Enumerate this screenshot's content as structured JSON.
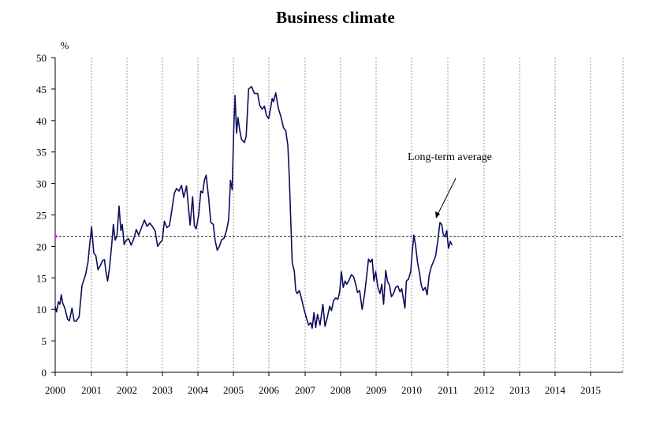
{
  "title": "Business climate",
  "chart_data": {
    "type": "line",
    "title": "Business climate",
    "ylabel": "%",
    "xlabel": "",
    "ylim": [
      0,
      50
    ],
    "xlim": [
      2000,
      2015.9
    ],
    "yticks": [
      0,
      5,
      10,
      15,
      20,
      25,
      30,
      35,
      40,
      45,
      50
    ],
    "xticks": [
      "2000",
      "2001",
      "2002",
      "2003",
      "2004",
      "2005",
      "2006",
      "2007",
      "2008",
      "2009",
      "2010",
      "2011",
      "2012",
      "2013",
      "2014",
      "2015"
    ],
    "grid": "vertical dashed at year boundaries",
    "reference_line": {
      "label": "Long-term average",
      "value": 21.6,
      "style": "dashed"
    },
    "annotation": {
      "text": "Long-term average"
    },
    "colors": {
      "series": "#0d0d5e",
      "average_marker": "#cc33cc"
    },
    "series": [
      {
        "values": [
          [
            2000.0,
            10.5
          ],
          [
            2000.04,
            9.6
          ],
          [
            2000.09,
            11.2
          ],
          [
            2000.13,
            10.8
          ],
          [
            2000.17,
            12.3
          ],
          [
            2000.21,
            11.0
          ],
          [
            2000.27,
            10.2
          ],
          [
            2000.35,
            8.4
          ],
          [
            2000.4,
            8.2
          ],
          [
            2000.47,
            10.2
          ],
          [
            2000.53,
            8.2
          ],
          [
            2000.58,
            8.1
          ],
          [
            2000.67,
            8.8
          ],
          [
            2000.75,
            13.8
          ],
          [
            2000.85,
            15.5
          ],
          [
            2000.92,
            17.5
          ],
          [
            2000.97,
            20.5
          ],
          [
            2001.02,
            23.1
          ],
          [
            2001.08,
            19.0
          ],
          [
            2001.14,
            18.5
          ],
          [
            2001.2,
            16.3
          ],
          [
            2001.27,
            17.0
          ],
          [
            2001.33,
            17.8
          ],
          [
            2001.38,
            17.9
          ],
          [
            2001.42,
            16.0
          ],
          [
            2001.47,
            14.5
          ],
          [
            2001.52,
            16.5
          ],
          [
            2001.58,
            20.0
          ],
          [
            2001.63,
            23.5
          ],
          [
            2001.68,
            21.0
          ],
          [
            2001.73,
            21.6
          ],
          [
            2001.79,
            26.4
          ],
          [
            2001.84,
            22.5
          ],
          [
            2001.88,
            23.5
          ],
          [
            2001.93,
            20.3
          ],
          [
            2001.99,
            21.0
          ],
          [
            2002.06,
            21.2
          ],
          [
            2002.13,
            20.2
          ],
          [
            2002.2,
            21.2
          ],
          [
            2002.27,
            22.7
          ],
          [
            2002.34,
            21.8
          ],
          [
            2002.42,
            23.0
          ],
          [
            2002.5,
            24.2
          ],
          [
            2002.57,
            23.2
          ],
          [
            2002.65,
            23.7
          ],
          [
            2002.72,
            23.2
          ],
          [
            2002.8,
            22.5
          ],
          [
            2002.87,
            20.0
          ],
          [
            2002.94,
            20.6
          ],
          [
            2003.0,
            21.0
          ],
          [
            2003.06,
            24.0
          ],
          [
            2003.13,
            23.0
          ],
          [
            2003.2,
            23.3
          ],
          [
            2003.27,
            25.8
          ],
          [
            2003.34,
            28.5
          ],
          [
            2003.4,
            29.2
          ],
          [
            2003.47,
            28.8
          ],
          [
            2003.54,
            29.7
          ],
          [
            2003.6,
            27.8
          ],
          [
            2003.68,
            29.6
          ],
          [
            2003.73,
            26.5
          ],
          [
            2003.78,
            23.4
          ],
          [
            2003.85,
            27.9
          ],
          [
            2003.9,
            23.3
          ],
          [
            2003.95,
            22.8
          ],
          [
            2004.02,
            25.0
          ],
          [
            2004.08,
            28.8
          ],
          [
            2004.13,
            28.5
          ],
          [
            2004.18,
            30.5
          ],
          [
            2004.23,
            31.3
          ],
          [
            2004.3,
            27.7
          ],
          [
            2004.36,
            23.8
          ],
          [
            2004.43,
            23.5
          ],
          [
            2004.48,
            21.0
          ],
          [
            2004.54,
            19.4
          ],
          [
            2004.6,
            20.0
          ],
          [
            2004.66,
            21.0
          ],
          [
            2004.73,
            21.3
          ],
          [
            2004.8,
            22.5
          ],
          [
            2004.86,
            24.3
          ],
          [
            2004.91,
            30.5
          ],
          [
            2004.96,
            29.0
          ],
          [
            2005.0,
            38.0
          ],
          [
            2005.04,
            44.0
          ],
          [
            2005.08,
            38.0
          ],
          [
            2005.12,
            40.5
          ],
          [
            2005.17,
            38.5
          ],
          [
            2005.22,
            37.0
          ],
          [
            2005.3,
            36.5
          ],
          [
            2005.35,
            37.5
          ],
          [
            2005.42,
            45.0
          ],
          [
            2005.5,
            45.4
          ],
          [
            2005.58,
            44.3
          ],
          [
            2005.67,
            44.3
          ],
          [
            2005.73,
            42.4
          ],
          [
            2005.8,
            41.8
          ],
          [
            2005.86,
            42.3
          ],
          [
            2005.92,
            40.8
          ],
          [
            2005.98,
            40.3
          ],
          [
            2006.03,
            41.8
          ],
          [
            2006.08,
            43.5
          ],
          [
            2006.12,
            43.0
          ],
          [
            2006.18,
            44.4
          ],
          [
            2006.25,
            42.0
          ],
          [
            2006.33,
            40.5
          ],
          [
            2006.4,
            38.8
          ],
          [
            2006.46,
            38.4
          ],
          [
            2006.52,
            36.0
          ],
          [
            2006.56,
            31.0
          ],
          [
            2006.6,
            24.0
          ],
          [
            2006.64,
            17.5
          ],
          [
            2006.7,
            16.0
          ],
          [
            2006.74,
            13.0
          ],
          [
            2006.78,
            12.5
          ],
          [
            2006.84,
            13.0
          ],
          [
            2006.88,
            12.2
          ],
          [
            2006.93,
            11.0
          ],
          [
            2006.98,
            9.8
          ],
          [
            2007.04,
            8.6
          ],
          [
            2007.1,
            7.5
          ],
          [
            2007.16,
            7.9
          ],
          [
            2007.2,
            7.0
          ],
          [
            2007.25,
            9.5
          ],
          [
            2007.3,
            7.1
          ],
          [
            2007.35,
            9.2
          ],
          [
            2007.42,
            7.5
          ],
          [
            2007.5,
            10.8
          ],
          [
            2007.56,
            7.3
          ],
          [
            2007.62,
            8.6
          ],
          [
            2007.69,
            10.5
          ],
          [
            2007.74,
            9.8
          ],
          [
            2007.8,
            11.4
          ],
          [
            2007.86,
            11.8
          ],
          [
            2007.92,
            11.6
          ],
          [
            2007.97,
            12.8
          ],
          [
            2008.02,
            16.0
          ],
          [
            2008.07,
            13.5
          ],
          [
            2008.12,
            14.5
          ],
          [
            2008.17,
            14.0
          ],
          [
            2008.22,
            14.5
          ],
          [
            2008.3,
            15.5
          ],
          [
            2008.36,
            15.2
          ],
          [
            2008.42,
            14.0
          ],
          [
            2008.47,
            12.7
          ],
          [
            2008.53,
            13.0
          ],
          [
            2008.6,
            10.0
          ],
          [
            2008.67,
            12.5
          ],
          [
            2008.73,
            15.5
          ],
          [
            2008.78,
            18.0
          ],
          [
            2008.83,
            17.5
          ],
          [
            2008.88,
            18.0
          ],
          [
            2008.93,
            14.5
          ],
          [
            2008.98,
            16.0
          ],
          [
            2009.04,
            13.5
          ],
          [
            2009.1,
            12.5
          ],
          [
            2009.15,
            14.0
          ],
          [
            2009.2,
            10.8
          ],
          [
            2009.26,
            16.2
          ],
          [
            2009.31,
            14.5
          ],
          [
            2009.37,
            13.8
          ],
          [
            2009.42,
            12.0
          ],
          [
            2009.48,
            12.5
          ],
          [
            2009.54,
            13.5
          ],
          [
            2009.6,
            13.7
          ],
          [
            2009.66,
            12.8
          ],
          [
            2009.71,
            13.3
          ],
          [
            2009.76,
            11.5
          ],
          [
            2009.8,
            10.2
          ],
          [
            2009.84,
            14.5
          ],
          [
            2009.9,
            14.8
          ],
          [
            2009.96,
            16.0
          ],
          [
            2010.0,
            19.0
          ],
          [
            2010.05,
            21.8
          ],
          [
            2010.1,
            20.0
          ],
          [
            2010.15,
            17.5
          ],
          [
            2010.2,
            16.0
          ],
          [
            2010.26,
            13.8
          ],
          [
            2010.31,
            13.0
          ],
          [
            2010.37,
            13.5
          ],
          [
            2010.42,
            12.3
          ],
          [
            2010.48,
            15.5
          ],
          [
            2010.54,
            16.8
          ],
          [
            2010.6,
            17.6
          ],
          [
            2010.66,
            18.5
          ],
          [
            2010.72,
            21.0
          ],
          [
            2010.78,
            23.8
          ],
          [
            2010.83,
            23.5
          ],
          [
            2010.87,
            22.0
          ],
          [
            2010.92,
            21.5
          ],
          [
            2010.97,
            22.5
          ],
          [
            2011.02,
            19.7
          ],
          [
            2011.07,
            20.8
          ],
          [
            2011.12,
            20.2
          ]
        ]
      }
    ]
  }
}
